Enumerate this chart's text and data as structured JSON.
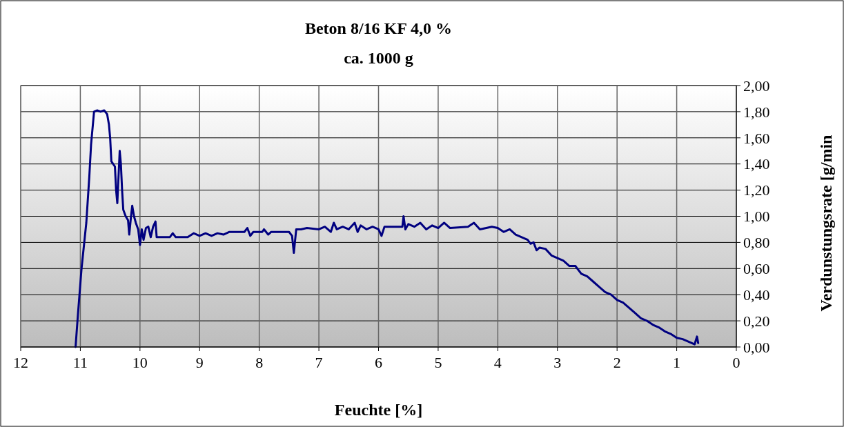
{
  "chart_data": {
    "type": "line",
    "title": "Beton 8/16 KF 4,0 %",
    "subtitle": "ca. 1000 g",
    "xlabel": "Feuchte [%]",
    "ylabel": "Verdunstungsrate [g/min",
    "xlim": [
      12,
      0
    ],
    "xticks": [
      12,
      11,
      10,
      9,
      8,
      7,
      6,
      5,
      4,
      3,
      2,
      1,
      0
    ],
    "ylim": [
      0,
      2
    ],
    "yticks": [
      {
        "value": 0,
        "label": "0,00"
      },
      {
        "value": 0.2,
        "label": "0,20"
      },
      {
        "value": 0.4,
        "label": "0,40"
      },
      {
        "value": 0.6,
        "label": "0,60"
      },
      {
        "value": 0.8,
        "label": "0,80"
      },
      {
        "value": 1,
        "label": "1,00"
      },
      {
        "value": 1.2,
        "label": "1,20"
      },
      {
        "value": 1.4,
        "label": "1,40"
      },
      {
        "value": 1.6,
        "label": "1,60"
      },
      {
        "value": 1.8,
        "label": "1,80"
      },
      {
        "value": 2,
        "label": "2,00"
      }
    ],
    "grid": true,
    "marker": "none",
    "line_style": "solid",
    "series": [
      {
        "color": "#000080",
        "x": [
          11.08,
          11.04,
          10.98,
          10.9,
          10.85,
          10.82,
          10.79,
          10.77,
          10.72,
          10.66,
          10.6,
          10.55,
          10.52,
          10.5,
          10.48,
          10.45,
          10.42,
          10.4,
          10.38,
          10.36,
          10.34,
          10.32,
          10.3,
          10.28,
          10.24,
          10.2,
          10.18,
          10.15,
          10.13,
          10.1,
          10.07,
          10.03,
          10.0,
          9.97,
          9.94,
          9.9,
          9.86,
          9.82,
          9.78,
          9.74,
          9.72,
          9.6,
          9.5,
          9.45,
          9.4,
          9.2,
          9.1,
          9.0,
          8.9,
          8.8,
          8.7,
          8.6,
          8.5,
          8.4,
          8.25,
          8.2,
          8.15,
          8.1,
          7.95,
          7.92,
          7.85,
          7.8,
          7.5,
          7.45,
          7.42,
          7.38,
          7.3,
          7.2,
          7.0,
          6.9,
          6.8,
          6.75,
          6.7,
          6.6,
          6.5,
          6.4,
          6.35,
          6.3,
          6.2,
          6.1,
          6.0,
          5.95,
          5.9,
          5.6,
          5.58,
          5.55,
          5.5,
          5.4,
          5.3,
          5.2,
          5.1,
          5.0,
          4.9,
          4.8,
          4.5,
          4.4,
          4.3,
          4.1,
          4.0,
          3.9,
          3.8,
          3.7,
          3.6,
          3.5,
          3.45,
          3.4,
          3.35,
          3.3,
          3.2,
          3.1,
          3.0,
          2.9,
          2.8,
          2.7,
          2.6,
          2.5,
          2.4,
          2.3,
          2.2,
          2.1,
          2.0,
          1.9,
          1.8,
          1.7,
          1.6,
          1.5,
          1.4,
          1.3,
          1.2,
          1.1,
          1.0,
          0.9,
          0.8,
          0.7,
          0.66,
          0.64
        ],
        "values": [
          0,
          0.25,
          0.6,
          0.95,
          1.3,
          1.55,
          1.7,
          1.8,
          1.81,
          1.8,
          1.81,
          1.78,
          1.7,
          1.6,
          1.42,
          1.4,
          1.38,
          1.2,
          1.1,
          1.3,
          1.5,
          1.4,
          1.2,
          1.05,
          1.0,
          0.97,
          0.86,
          1.0,
          1.08,
          1.0,
          0.95,
          0.9,
          0.78,
          0.9,
          0.82,
          0.91,
          0.92,
          0.84,
          0.92,
          0.96,
          0.84,
          0.84,
          0.84,
          0.87,
          0.84,
          0.84,
          0.87,
          0.85,
          0.87,
          0.85,
          0.87,
          0.86,
          0.88,
          0.88,
          0.88,
          0.91,
          0.85,
          0.88,
          0.88,
          0.9,
          0.86,
          0.88,
          0.88,
          0.85,
          0.72,
          0.9,
          0.9,
          0.91,
          0.9,
          0.92,
          0.88,
          0.95,
          0.9,
          0.92,
          0.9,
          0.95,
          0.88,
          0.93,
          0.9,
          0.92,
          0.9,
          0.85,
          0.92,
          0.92,
          1.0,
          0.9,
          0.94,
          0.92,
          0.95,
          0.9,
          0.93,
          0.91,
          0.95,
          0.91,
          0.92,
          0.95,
          0.9,
          0.92,
          0.91,
          0.88,
          0.9,
          0.86,
          0.84,
          0.82,
          0.79,
          0.8,
          0.74,
          0.76,
          0.75,
          0.7,
          0.68,
          0.66,
          0.62,
          0.62,
          0.56,
          0.54,
          0.5,
          0.46,
          0.42,
          0.4,
          0.36,
          0.34,
          0.3,
          0.26,
          0.22,
          0.2,
          0.17,
          0.15,
          0.12,
          0.1,
          0.07,
          0.06,
          0.04,
          0.02,
          0.08,
          0.03
        ]
      }
    ]
  }
}
